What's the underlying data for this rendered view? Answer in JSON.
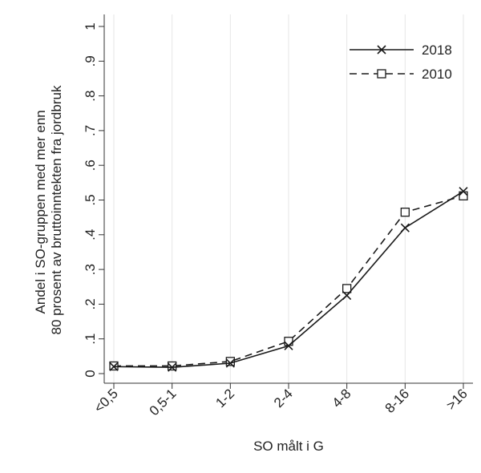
{
  "chart_data": {
    "type": "line",
    "title": "",
    "xlabel": "SO målt i G",
    "ylabel": [
      "Andel i SO-gruppen med mer enn",
      "80 prosent av bruttoinntekten fra jordbruk"
    ],
    "categories": [
      "<0,5",
      "0,5-1",
      "1-2",
      "2-4",
      "4-8",
      "8-16",
      ">16"
    ],
    "y_ticks": [
      0,
      0.1,
      0.2,
      0.3,
      0.4,
      0.5,
      0.6,
      0.7,
      0.8,
      0.9,
      1
    ],
    "y_tick_labels": [
      "0",
      ".1",
      ".2",
      ".3",
      ".4",
      ".5",
      ".6",
      ".7",
      ".8",
      ".9",
      "1"
    ],
    "ylim": [
      0,
      1
    ],
    "grid": "vertical",
    "legend_position": "top-right",
    "series": [
      {
        "name": "2018",
        "values": [
          0.02,
          0.018,
          0.03,
          0.08,
          0.225,
          0.42,
          0.525
        ],
        "line_style": "solid",
        "marker": "x",
        "color": "#1a1a1a"
      },
      {
        "name": "2010",
        "values": [
          0.022,
          0.022,
          0.035,
          0.093,
          0.245,
          0.465,
          0.512
        ],
        "line_style": "dashed",
        "marker": "square",
        "color": "#1a1a1a"
      }
    ]
  }
}
